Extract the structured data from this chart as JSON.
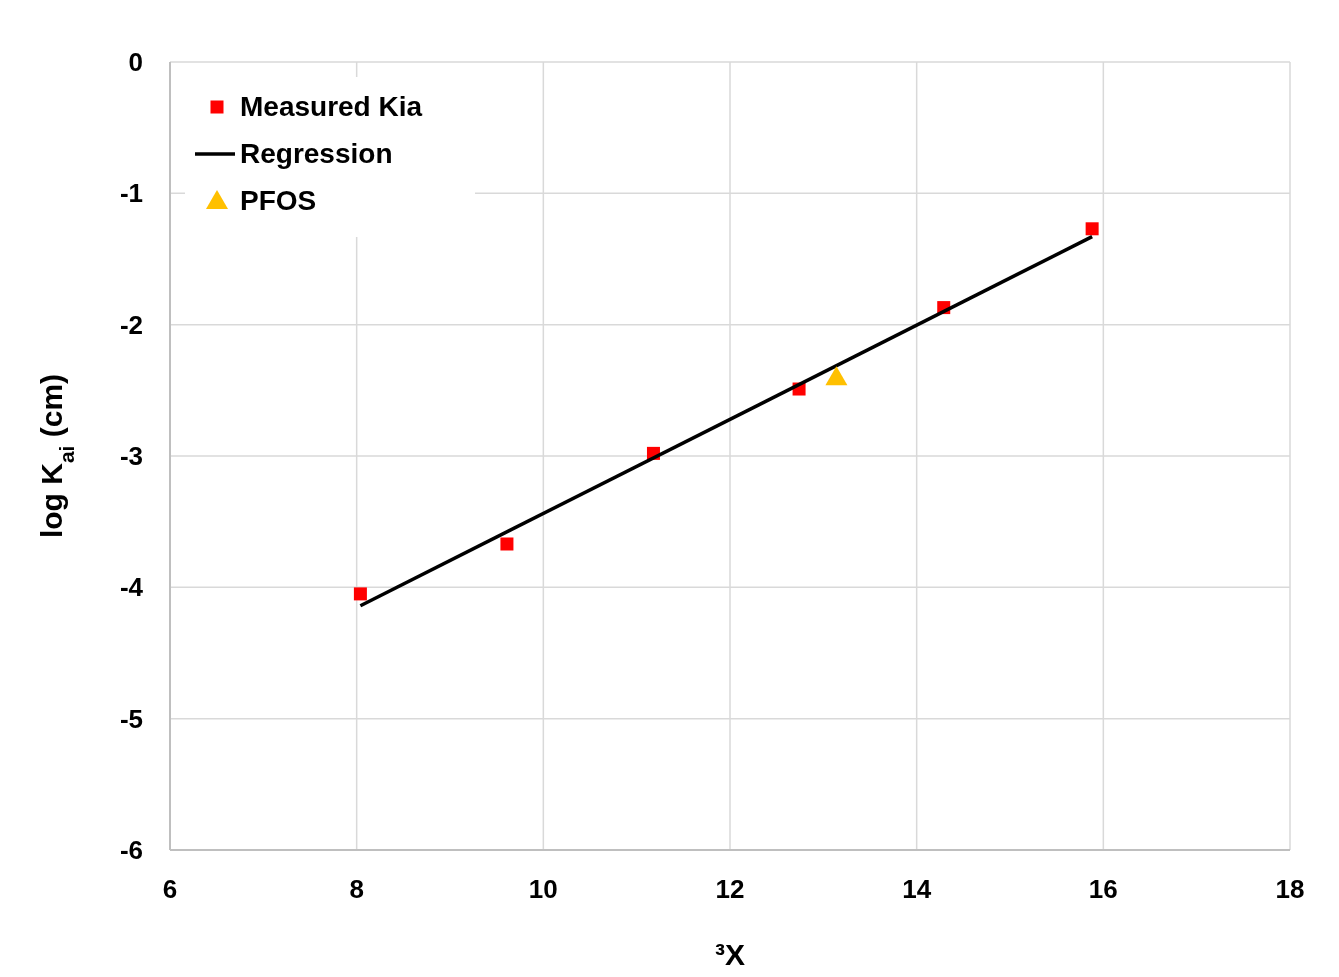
{
  "chart_data": {
    "type": "scatter",
    "xlabel": "³X",
    "ylabel": "log K$_{ai}$ (cm)",
    "xlim": [
      6,
      18
    ],
    "xticks": [
      6,
      8,
      10,
      12,
      14,
      16,
      18
    ],
    "ylim": [
      -6,
      0
    ],
    "yticks": [
      -6,
      -5,
      -4,
      -3,
      -2,
      -1,
      0
    ],
    "grid": true,
    "legend": "top left",
    "series": [
      {
        "name": "Measured Kia",
        "marker": "square",
        "color": "#ff0000",
        "x": [
          8.04,
          9.61,
          11.18,
          12.74,
          14.29,
          15.88
        ],
        "values": [
          -4.05,
          -3.67,
          -2.98,
          -2.49,
          -1.87,
          -1.27
        ]
      },
      {
        "name": "Regression",
        "type": "line",
        "marker": "none",
        "line_style": "solid",
        "color": "#000000",
        "x": [
          8.04,
          15.88
        ],
        "values": [
          -4.14,
          -1.33
        ]
      },
      {
        "name": "PFOS",
        "marker": "triangle",
        "color": "#ffc000",
        "x": [
          13.14
        ],
        "values": [
          -2.4
        ]
      }
    ]
  }
}
